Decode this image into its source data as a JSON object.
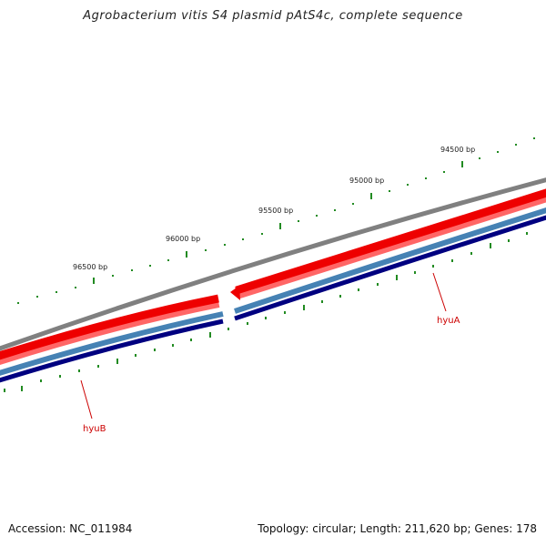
{
  "title": "Agrobacterium vitis S4 plasmid pAtS4c, complete sequence",
  "footer": {
    "accession": "Accession: NC_011984",
    "summary": "Topology: circular; Length: 211,620 bp; Genes: 178"
  },
  "position_labels": [
    {
      "bp": 94500,
      "text": "94500 bp"
    },
    {
      "bp": 95000,
      "text": "95000 bp"
    },
    {
      "bp": 95500,
      "text": "95500 bp"
    },
    {
      "bp": 96000,
      "text": "96000 bp"
    },
    {
      "bp": 96500,
      "text": "96500 bp"
    }
  ],
  "genes": [
    {
      "name": "hyuA",
      "label": "hyuA",
      "color": "#cc0000"
    },
    {
      "name": "hyuB",
      "label": "hyuB",
      "color": "#cc0000"
    }
  ],
  "colors": {
    "backbone": "#808080",
    "cds": "#ee0000",
    "cds_light": "#ff6666",
    "gene": "#4682b4",
    "gene_dark": "#000080",
    "tick": "#228b22",
    "label": "#cc0000"
  }
}
